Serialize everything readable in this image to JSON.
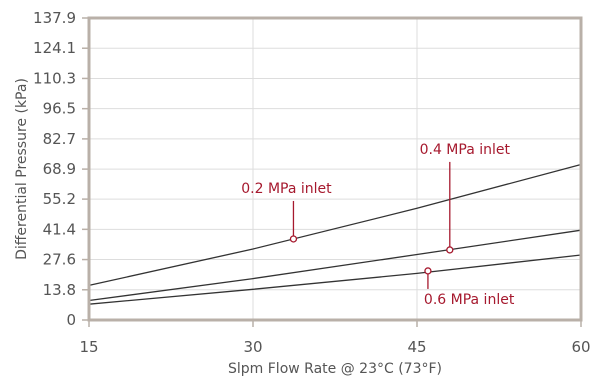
{
  "chart_data": {
    "type": "line",
    "xlabel": "Slpm Flow Rate @ 23°C (73°F)",
    "ylabel": "Differential Pressure (kPa)",
    "xlim": [
      15,
      60
    ],
    "ylim": [
      0,
      137.9
    ],
    "x_ticks": [
      15,
      30,
      45,
      60
    ],
    "y_ticks": [
      0,
      13.8,
      27.6,
      41.4,
      55.2,
      68.9,
      82.7,
      96.5,
      110.3,
      124.1,
      137.9
    ],
    "x_tick_labels": [
      "15",
      "30",
      "45",
      "60"
    ],
    "y_tick_labels": [
      "0",
      "13.8",
      "27.6",
      "41.4",
      "55.2",
      "68.9",
      "82.7",
      "96.5",
      "110.3",
      "124.1",
      "137.9"
    ],
    "grid": true,
    "series": [
      {
        "x": [
          15,
          30,
          45,
          60
        ],
        "values": [
          15.8,
          32.4,
          51.0,
          71.0
        ]
      },
      {
        "x": [
          15,
          30,
          45,
          60
        ],
        "values": [
          8.9,
          18.9,
          29.9,
          41.0
        ]
      },
      {
        "x": [
          15,
          30,
          45,
          60
        ],
        "values": [
          7.2,
          14.0,
          21.3,
          29.7
        ]
      }
    ],
    "annotations": [
      {
        "text": "0.2 MPa inlet",
        "series_index": 0,
        "x": 33.7,
        "y": 37.0
      },
      {
        "text": "0.4 MPa inlet",
        "series_index": 1,
        "x": 48.0,
        "y": 32.0
      },
      {
        "text": "0.6 MPa inlet",
        "series_index": 2,
        "x": 46.0,
        "y": 22.4
      }
    ],
    "colors": {
      "series": "#333333",
      "annotation": "#a6192e",
      "grid": "#dddddd",
      "frame": "#b9b0a8",
      "text": "#555555"
    }
  }
}
